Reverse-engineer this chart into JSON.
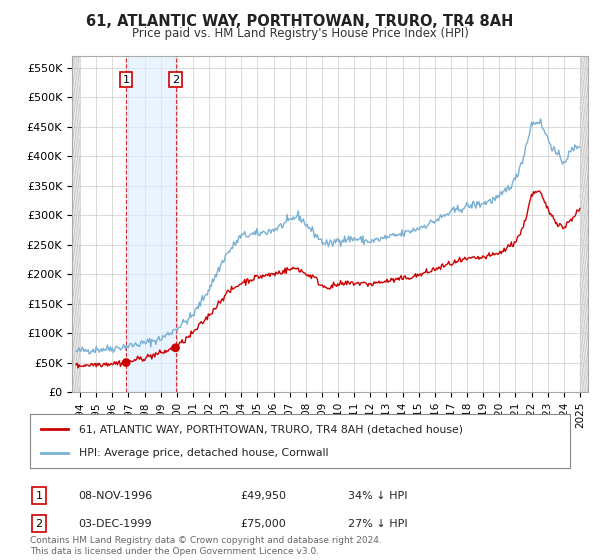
{
  "title": "61, ATLANTIC WAY, PORTHTOWAN, TRURO, TR4 8AH",
  "subtitle": "Price paid vs. HM Land Registry's House Price Index (HPI)",
  "ylabel_ticks": [
    "£0",
    "£50K",
    "£100K",
    "£150K",
    "£200K",
    "£250K",
    "£300K",
    "£350K",
    "£400K",
    "£450K",
    "£500K",
    "£550K"
  ],
  "ytick_values": [
    0,
    50000,
    100000,
    150000,
    200000,
    250000,
    300000,
    350000,
    400000,
    450000,
    500000,
    550000
  ],
  "ylim": [
    0,
    570000
  ],
  "xlim_start": 1993.5,
  "xlim_end": 2025.5,
  "hpi_color": "#7ab0d4",
  "price_color": "#cc0000",
  "sale1_date": 1996.86,
  "sale1_price": 49950,
  "sale2_date": 1999.92,
  "sale2_price": 75000,
  "legend_label1": "61, ATLANTIC WAY, PORTHTOWAN, TRURO, TR4 8AH (detached house)",
  "legend_label2": "HPI: Average price, detached house, Cornwall",
  "table_row1": [
    "1",
    "08-NOV-1996",
    "£49,950",
    "34% ↓ HPI"
  ],
  "table_row2": [
    "2",
    "03-DEC-1999",
    "£75,000",
    "27% ↓ HPI"
  ],
  "footnote": "Contains HM Land Registry data © Crown copyright and database right 2024.\nThis data is licensed under the Open Government Licence v3.0.",
  "background_color": "#ffffff",
  "grid_color": "#cccccc",
  "hpi_points": [
    [
      1993.75,
      68000
    ],
    [
      1994.0,
      70000
    ],
    [
      1995.0,
      72000
    ],
    [
      1996.0,
      74000
    ],
    [
      1997.0,
      78000
    ],
    [
      1998.0,
      83000
    ],
    [
      1999.0,
      90000
    ],
    [
      2000.0,
      108000
    ],
    [
      2001.0,
      130000
    ],
    [
      2002.0,
      175000
    ],
    [
      2003.0,
      230000
    ],
    [
      2004.0,
      265000
    ],
    [
      2005.0,
      268000
    ],
    [
      2006.0,
      275000
    ],
    [
      2007.0,
      290000
    ],
    [
      2007.5,
      300000
    ],
    [
      2008.0,
      285000
    ],
    [
      2008.5,
      270000
    ],
    [
      2009.0,
      255000
    ],
    [
      2009.5,
      250000
    ],
    [
      2010.0,
      258000
    ],
    [
      2011.0,
      260000
    ],
    [
      2012.0,
      255000
    ],
    [
      2013.0,
      262000
    ],
    [
      2014.0,
      268000
    ],
    [
      2015.0,
      278000
    ],
    [
      2016.0,
      290000
    ],
    [
      2017.0,
      305000
    ],
    [
      2018.0,
      315000
    ],
    [
      2019.0,
      320000
    ],
    [
      2020.0,
      330000
    ],
    [
      2021.0,
      360000
    ],
    [
      2021.5,
      400000
    ],
    [
      2022.0,
      455000
    ],
    [
      2022.5,
      460000
    ],
    [
      2023.0,
      430000
    ],
    [
      2023.5,
      405000
    ],
    [
      2024.0,
      390000
    ],
    [
      2024.5,
      410000
    ],
    [
      2025.0,
      420000
    ]
  ],
  "red_points": [
    [
      1993.75,
      44000
    ],
    [
      1994.0,
      45000
    ],
    [
      1995.0,
      47000
    ],
    [
      1996.0,
      48500
    ],
    [
      1996.86,
      49950
    ],
    [
      1997.5,
      55000
    ],
    [
      1998.0,
      58000
    ],
    [
      1999.0,
      66000
    ],
    [
      1999.92,
      75000
    ],
    [
      2000.5,
      88000
    ],
    [
      2001.0,
      100000
    ],
    [
      2002.0,
      130000
    ],
    [
      2003.0,
      165000
    ],
    [
      2004.0,
      185000
    ],
    [
      2005.0,
      195000
    ],
    [
      2006.0,
      200000
    ],
    [
      2007.0,
      208000
    ],
    [
      2007.5,
      210000
    ],
    [
      2008.0,
      200000
    ],
    [
      2008.5,
      195000
    ],
    [
      2009.0,
      180000
    ],
    [
      2009.5,
      178000
    ],
    [
      2010.0,
      182000
    ],
    [
      2011.0,
      185000
    ],
    [
      2012.0,
      183000
    ],
    [
      2013.0,
      188000
    ],
    [
      2014.0,
      192000
    ],
    [
      2015.0,
      198000
    ],
    [
      2016.0,
      208000
    ],
    [
      2017.0,
      218000
    ],
    [
      2018.0,
      225000
    ],
    [
      2019.0,
      228000
    ],
    [
      2020.0,
      235000
    ],
    [
      2021.0,
      255000
    ],
    [
      2021.5,
      280000
    ],
    [
      2022.0,
      335000
    ],
    [
      2022.5,
      340000
    ],
    [
      2023.0,
      310000
    ],
    [
      2023.5,
      290000
    ],
    [
      2024.0,
      278000
    ],
    [
      2024.5,
      295000
    ],
    [
      2025.0,
      310000
    ]
  ]
}
